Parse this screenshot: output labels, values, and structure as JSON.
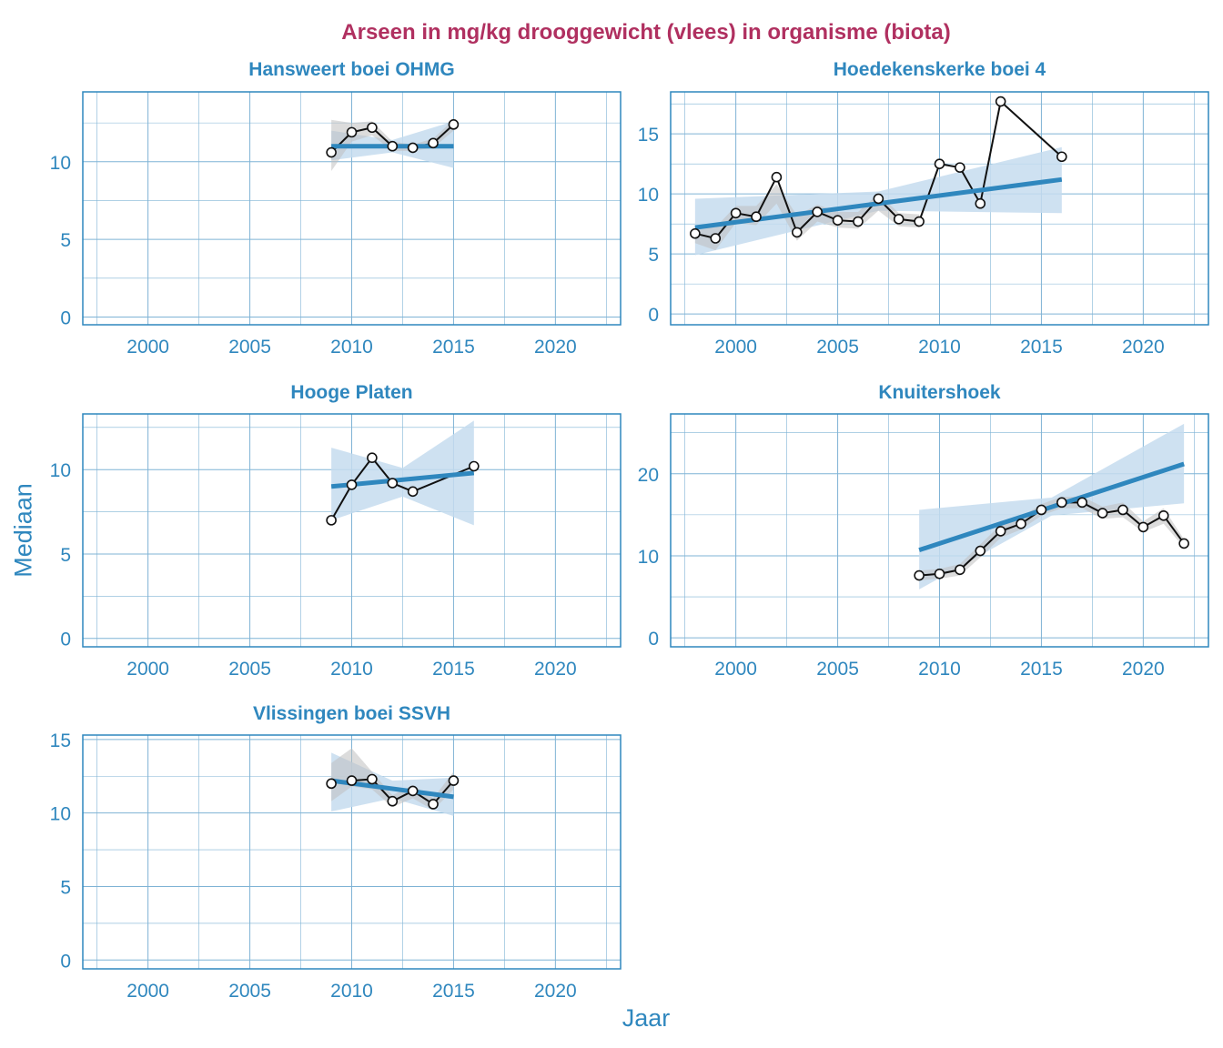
{
  "figure": {
    "title": "Arseen in mg/kg drooggewicht (vlees) in organisme (biota)",
    "xlabel": "Jaar",
    "ylabel": "Mediaan"
  },
  "colors": {
    "title": "#b03060",
    "axis_text": "#2f87be",
    "frame": "#2f87be",
    "grid": "#7fb3d5",
    "trend": "#2f87be",
    "trend_band": "#c6dcef",
    "smooth_band": "#bfbfbf",
    "series_line": "#111111",
    "marker_fill": "#ffffff"
  },
  "chart_data": [
    {
      "type": "line",
      "title": "Hansweert boei OHMG",
      "x_ticks": [
        2000,
        2005,
        2010,
        2015,
        2020
      ],
      "y_ticks": [
        0,
        5,
        10
      ],
      "xlim": [
        1996.8,
        2023.2
      ],
      "ylim": [
        -0.5,
        14.5
      ],
      "grid": true,
      "x": [
        2009,
        2010,
        2011,
        2012,
        2013,
        2014,
        2015
      ],
      "y": [
        10.6,
        11.9,
        12.2,
        11.0,
        10.9,
        11.2,
        12.4
      ],
      "trend": {
        "x": [
          2009,
          2015
        ],
        "y": [
          11.0,
          11.0
        ]
      },
      "trend_band": {
        "x": [
          2009,
          2012,
          2015
        ],
        "lower": [
          10.1,
          10.6,
          9.6
        ],
        "upper": [
          12.0,
          11.4,
          12.6
        ]
      },
      "smooth_band": {
        "x": [
          2009,
          2010,
          2011,
          2012,
          2013,
          2014,
          2015
        ],
        "lower": [
          9.4,
          11.3,
          11.7,
          10.7,
          10.7,
          10.9,
          12.0
        ],
        "upper": [
          12.7,
          12.5,
          12.6,
          11.3,
          11.1,
          11.5,
          12.7
        ]
      }
    },
    {
      "type": "line",
      "title": "Hoedekenskerke boei 4",
      "x_ticks": [
        2000,
        2005,
        2010,
        2015,
        2020
      ],
      "y_ticks": [
        0,
        5,
        10,
        15
      ],
      "xlim": [
        1996.8,
        2023.2
      ],
      "ylim": [
        -0.9,
        18.5
      ],
      "grid": true,
      "x": [
        1998,
        1999,
        2000,
        2001,
        2002,
        2003,
        2004,
        2005,
        2006,
        2007,
        2008,
        2009,
        2010,
        2011,
        2012,
        2013,
        2016
      ],
      "y": [
        6.7,
        6.3,
        8.4,
        8.1,
        11.4,
        6.8,
        8.5,
        7.8,
        7.7,
        9.6,
        7.9,
        7.7,
        12.5,
        12.2,
        9.2,
        17.7,
        13.1
      ],
      "trend": {
        "x": [
          1998,
          2016
        ],
        "y": [
          7.2,
          11.2
        ]
      },
      "trend_band": {
        "x": [
          1998,
          2007,
          2016
        ],
        "lower": [
          4.9,
          8.6,
          8.4
        ],
        "upper": [
          9.6,
          10.2,
          13.9
        ]
      },
      "smooth_band": {
        "x": [
          1998,
          1999,
          2000,
          2001,
          2002,
          2003,
          2004,
          2005,
          2006,
          2007,
          2008,
          2009
        ],
        "lower": [
          5.9,
          5.3,
          7.6,
          7.4,
          9.2,
          6.1,
          7.7,
          7.2,
          7.1,
          8.6,
          7.3,
          7.2
        ],
        "upper": [
          7.4,
          7.2,
          9.0,
          9.0,
          10.8,
          8.2,
          9.1,
          8.5,
          8.5,
          10.0,
          8.4,
          8.3
        ]
      }
    },
    {
      "type": "line",
      "title": "Hooge Platen",
      "x_ticks": [
        2000,
        2005,
        2010,
        2015,
        2020
      ],
      "y_ticks": [
        0,
        5,
        10
      ],
      "xlim": [
        1996.8,
        2023.2
      ],
      "ylim": [
        -0.5,
        13.3
      ],
      "grid": true,
      "x": [
        2009,
        2010,
        2011,
        2012,
        2013,
        2016
      ],
      "y": [
        7.0,
        9.1,
        10.7,
        9.2,
        8.7,
        10.2
      ],
      "trend": {
        "x": [
          2009,
          2016
        ],
        "y": [
          9.0,
          9.8
        ]
      },
      "trend_band": {
        "x": [
          2009,
          2012.5,
          2016
        ],
        "lower": [
          7.0,
          8.4,
          6.7
        ],
        "upper": [
          11.3,
          10.1,
          12.9
        ]
      },
      "smooth_band": null
    },
    {
      "type": "line",
      "title": "Knuitershoek",
      "x_ticks": [
        2000,
        2005,
        2010,
        2015,
        2020
      ],
      "y_ticks": [
        0,
        10,
        20
      ],
      "xlim": [
        1996.8,
        2023.2
      ],
      "ylim": [
        -1.1,
        27.3
      ],
      "grid": true,
      "x": [
        2009,
        2010,
        2011,
        2012,
        2013,
        2014,
        2015,
        2016,
        2017,
        2018,
        2019,
        2020,
        2021,
        2022
      ],
      "y": [
        7.6,
        7.8,
        8.3,
        10.6,
        13.0,
        13.9,
        15.6,
        16.5,
        16.5,
        15.2,
        15.6,
        13.5,
        14.9,
        11.5
      ],
      "trend": {
        "x": [
          2009,
          2022
        ],
        "y": [
          10.7,
          21.2
        ]
      },
      "trend_band": {
        "x": [
          2009,
          2015.5,
          2022
        ],
        "lower": [
          5.9,
          14.9,
          16.4
        ],
        "upper": [
          15.6,
          17.1,
          26.1
        ]
      },
      "smooth_band": {
        "x": [
          2009,
          2010,
          2011,
          2012,
          2013,
          2014,
          2015,
          2016,
          2017,
          2018,
          2019,
          2020,
          2021,
          2022
        ],
        "lower": [
          7.0,
          7.2,
          7.6,
          9.8,
          12.2,
          13.2,
          14.9,
          15.8,
          15.8,
          14.5,
          14.7,
          12.9,
          13.9,
          11.0
        ],
        "upper": [
          8.2,
          8.4,
          9.0,
          11.4,
          13.8,
          14.7,
          16.3,
          17.2,
          17.2,
          16.0,
          16.5,
          14.2,
          15.8,
          12.0
        ]
      }
    },
    {
      "type": "line",
      "title": "Vlissingen boei SSVH",
      "x_ticks": [
        2000,
        2005,
        2010,
        2015,
        2020
      ],
      "y_ticks": [
        0,
        5,
        10,
        15
      ],
      "xlim": [
        1996.8,
        2023.2
      ],
      "ylim": [
        -0.6,
        15.3
      ],
      "grid": true,
      "x": [
        2009,
        2010,
        2011,
        2012,
        2013,
        2014,
        2015
      ],
      "y": [
        12.0,
        12.2,
        12.3,
        10.8,
        11.5,
        10.6,
        12.2
      ],
      "trend": {
        "x": [
          2009,
          2015
        ],
        "y": [
          12.2,
          11.1
        ]
      },
      "trend_band": {
        "x": [
          2009,
          2012,
          2015
        ],
        "lower": [
          10.1,
          11.0,
          9.8
        ],
        "upper": [
          14.1,
          12.2,
          12.4
        ]
      },
      "smooth_band": {
        "x": [
          2009,
          2010,
          2011,
          2012,
          2013,
          2014,
          2015
        ],
        "lower": [
          10.8,
          11.8,
          11.6,
          10.4,
          11.0,
          10.2,
          11.6
        ],
        "upper": [
          13.4,
          14.4,
          12.8,
          11.2,
          11.9,
          11.0,
          12.8
        ]
      }
    }
  ]
}
